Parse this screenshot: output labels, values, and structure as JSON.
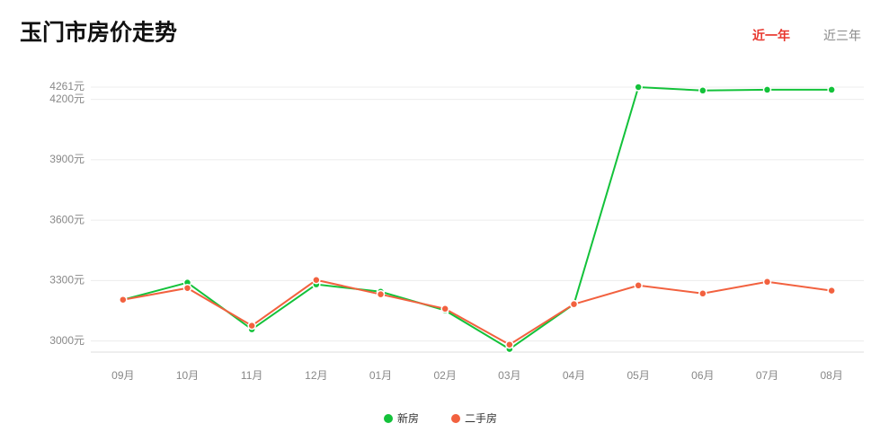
{
  "tabs": [
    "近一年",
    "近三年"
  ],
  "active_tab": 0,
  "chart_data": {
    "type": "line",
    "title": "玉门市房价走势",
    "categories": [
      "09月",
      "10月",
      "11月",
      "12月",
      "01月",
      "02月",
      "03月",
      "04月",
      "05月",
      "06月",
      "07月",
      "08月"
    ],
    "series": [
      {
        "name": "新房",
        "color": "#13c23a",
        "values": [
          3205,
          3290,
          3058,
          3281,
          3245,
          3152,
          2960,
          3183,
          4261,
          4244,
          4248,
          4248
        ]
      },
      {
        "name": "二手房",
        "color": "#f2613f",
        "values": [
          3205,
          3263,
          3076,
          3303,
          3232,
          3160,
          2982,
          3183,
          3276,
          3236,
          3294,
          3250
        ]
      }
    ],
    "ylim": [
      2945,
      4261
    ],
    "yticks": [
      {
        "value": 3000,
        "label": "3000元"
      },
      {
        "value": 3300,
        "label": "3300元"
      },
      {
        "value": 3600,
        "label": "3600元"
      },
      {
        "value": 3900,
        "label": "3900元"
      },
      {
        "value": 4200,
        "label": "4200元"
      },
      {
        "value": 4261,
        "label": "4261元"
      }
    ],
    "grid": true,
    "legend": "bottom"
  }
}
